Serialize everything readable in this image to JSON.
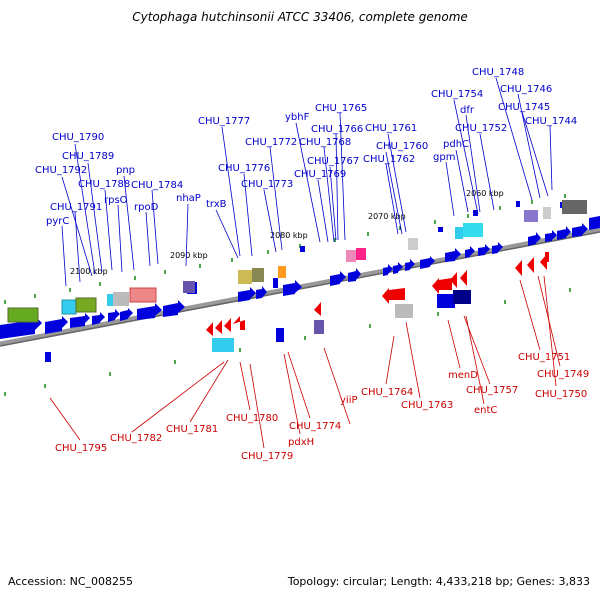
{
  "title": "Cytophaga hutchinsonii ATCC 33406, complete genome",
  "footer": {
    "accession": "Accession: NC_008255",
    "topology": "Topology: circular; Length: 4,433,218 bp; Genes: 3,833"
  },
  "colors": {
    "forward_strand": "#0000dd",
    "reverse_strand": "#ee0000",
    "forward_label": "#0000cc",
    "reverse_label": "#cc0000",
    "backbone": "#888888",
    "tick": "#008800"
  },
  "position_ticks": [
    "2100 kbp",
    "2090 kbp",
    "2080 kbp",
    "2070 kbp",
    "2060 kbp"
  ],
  "forward_labels": [
    "CHU_1790",
    "CHU_1789",
    "CHU_1792",
    "CHU_1788",
    "CHU_1791",
    "pyrC",
    "rpsO",
    "pnp",
    "rpoD",
    "CHU_1784",
    "nhaP",
    "trxB",
    "CHU_1777",
    "CHU_1776",
    "CHU_1772",
    "CHU_1773",
    "ybhF",
    "CHU_1765",
    "CHU_1766",
    "CHU_1768",
    "CHU_1767",
    "CHU_1769",
    "CHU_1761",
    "CHU_1760",
    "CHU_1762",
    "CHU_1754",
    "dfr",
    "pdhC",
    "gpm",
    "CHU_1752",
    "CHU_1748",
    "CHU_1746",
    "CHU_1745",
    "CHU_1744"
  ],
  "reverse_labels": [
    "CHU_1795",
    "CHU_1782",
    "CHU_1781",
    "CHU_1780",
    "CHU_1779",
    "CHU_1774",
    "pdxH",
    "yiiP",
    "CHU_1764",
    "CHU_1763",
    "menD",
    "CHU_1757",
    "entC",
    "CHU_1751",
    "CHU_1749",
    "CHU_1750"
  ]
}
